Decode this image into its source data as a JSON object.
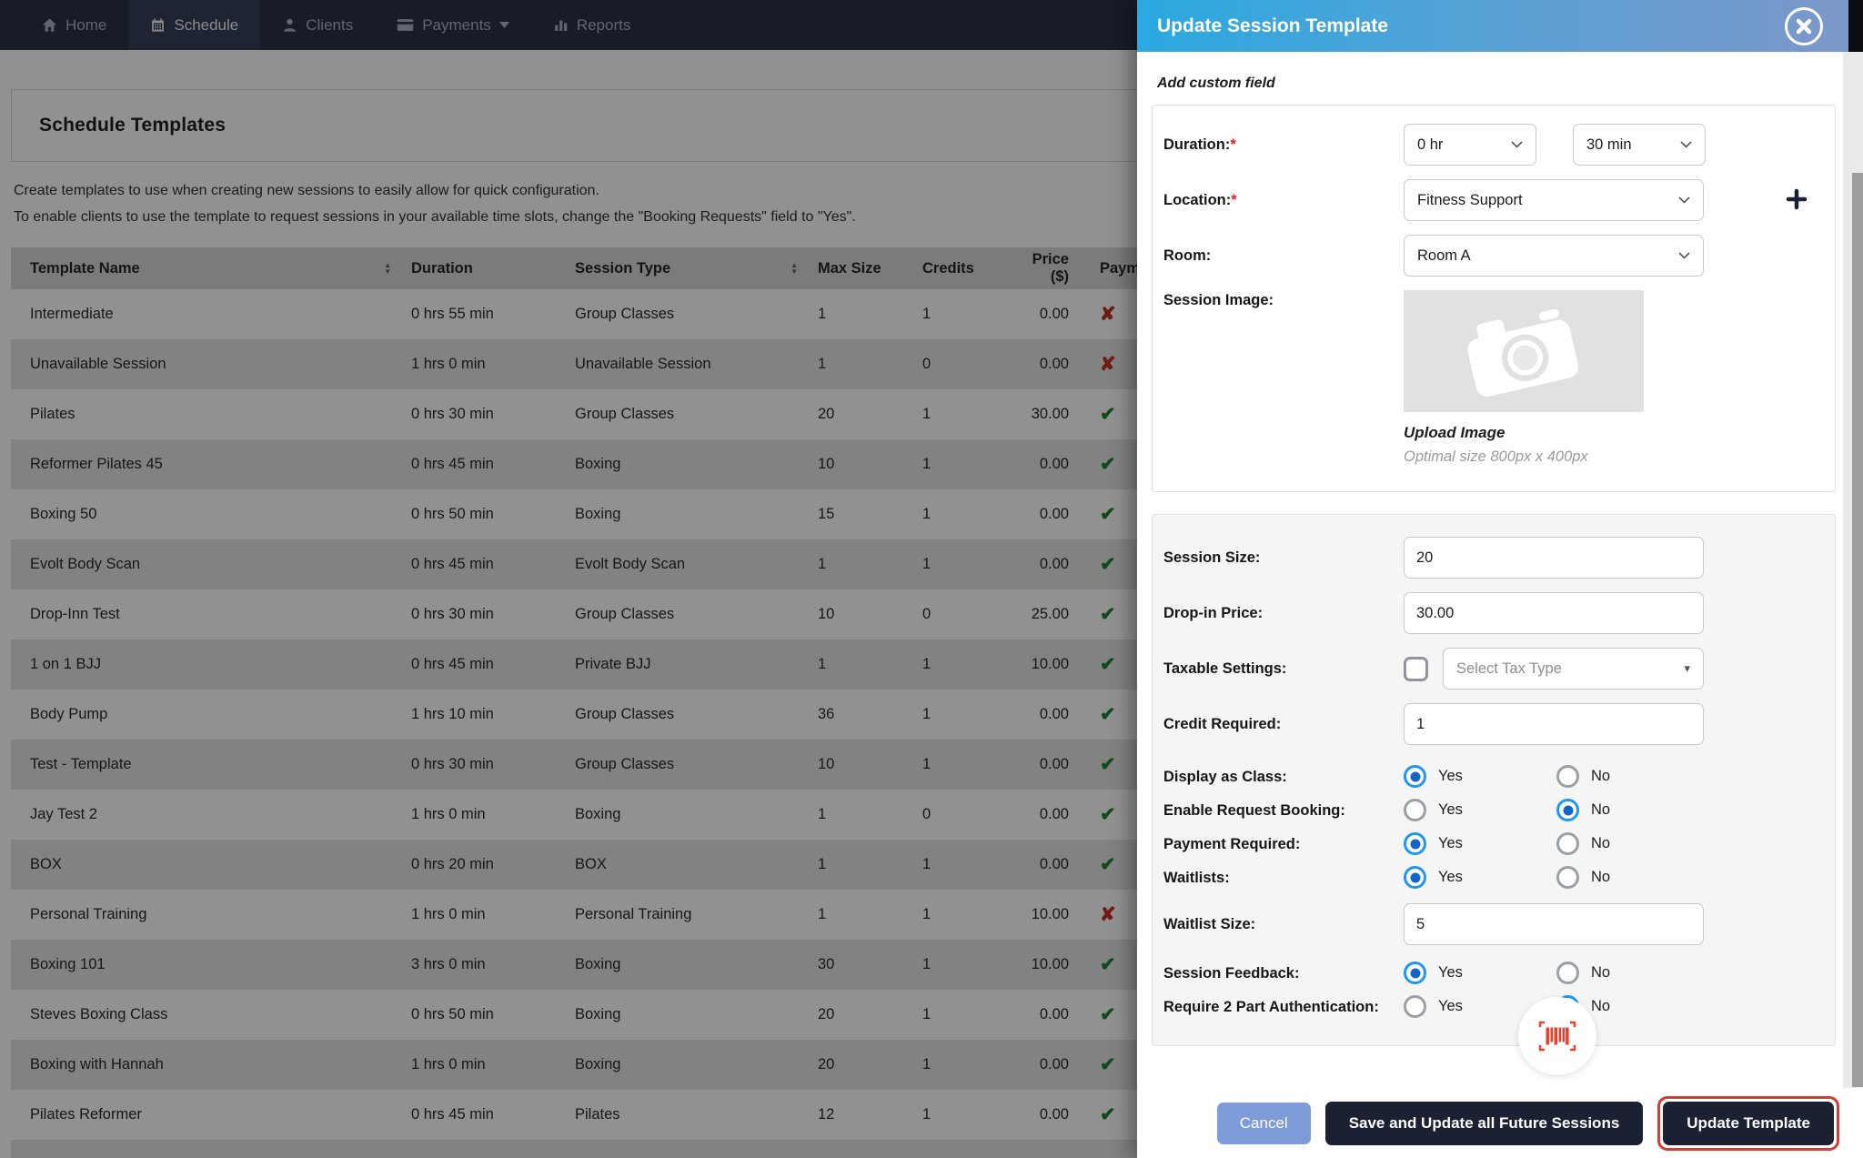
{
  "nav": {
    "items": [
      {
        "label": "Home",
        "icon": "home-icon",
        "active": false,
        "caret": false
      },
      {
        "label": "Schedule",
        "icon": "calendar-icon",
        "active": true,
        "caret": false
      },
      {
        "label": "Clients",
        "icon": "user-icon",
        "active": false,
        "caret": false
      },
      {
        "label": "Payments",
        "icon": "card-icon",
        "active": false,
        "caret": true
      },
      {
        "label": "Reports",
        "icon": "chart-icon",
        "active": false,
        "caret": false
      }
    ]
  },
  "page": {
    "title": "Schedule Templates",
    "description_line1": "Create templates to use when creating new sessions to easily allow for quick configuration.",
    "description_line2": "To enable clients to use the template to request sessions in your available time slots, change the \"Booking Requests\" field to \"Yes\"."
  },
  "table": {
    "columns": [
      {
        "label": "Template Name",
        "sortable": true
      },
      {
        "label": "Duration",
        "sortable": false
      },
      {
        "label": "Session Type",
        "sortable": true
      },
      {
        "label": "Max Size",
        "sortable": false
      },
      {
        "label": "Credits",
        "sortable": false
      },
      {
        "label": "Price ($)",
        "sortable": false
      },
      {
        "label": "Payment",
        "sortable": false
      }
    ],
    "rows": [
      {
        "name": "Intermediate",
        "duration": "0 hrs 55 min",
        "type": "Group Classes",
        "max": "1",
        "credits": "1",
        "price": "0.00",
        "payment": "no"
      },
      {
        "name": "Unavailable Session",
        "duration": "1 hrs 0 min",
        "type": "Unavailable Session",
        "max": "1",
        "credits": "0",
        "price": "0.00",
        "payment": "no"
      },
      {
        "name": "Pilates",
        "duration": "0 hrs 30 min",
        "type": "Group Classes",
        "max": "20",
        "credits": "1",
        "price": "30.00",
        "payment": "yes"
      },
      {
        "name": "Reformer Pilates 45",
        "duration": "0 hrs 45 min",
        "type": "Boxing",
        "max": "10",
        "credits": "1",
        "price": "0.00",
        "payment": "yes"
      },
      {
        "name": "Boxing 50",
        "duration": "0 hrs 50 min",
        "type": "Boxing",
        "max": "15",
        "credits": "1",
        "price": "0.00",
        "payment": "yes"
      },
      {
        "name": "Evolt Body Scan",
        "duration": "0 hrs 45 min",
        "type": "Evolt Body Scan",
        "max": "1",
        "credits": "1",
        "price": "0.00",
        "payment": "yes"
      },
      {
        "name": "Drop-Inn Test",
        "duration": "0 hrs 30 min",
        "type": "Group Classes",
        "max": "10",
        "credits": "0",
        "price": "25.00",
        "payment": "yes"
      },
      {
        "name": "1 on 1 BJJ",
        "duration": "0 hrs 45 min",
        "type": "Private BJJ",
        "max": "1",
        "credits": "1",
        "price": "10.00",
        "payment": "yes"
      },
      {
        "name": "Body Pump",
        "duration": "1 hrs 10 min",
        "type": "Group Classes",
        "max": "36",
        "credits": "1",
        "price": "0.00",
        "payment": "yes"
      },
      {
        "name": "Test - Template",
        "duration": "0 hrs 30 min",
        "type": "Group Classes",
        "max": "10",
        "credits": "1",
        "price": "0.00",
        "payment": "yes"
      },
      {
        "name": "Jay Test 2",
        "duration": "1 hrs 0 min",
        "type": "Boxing",
        "max": "1",
        "credits": "0",
        "price": "0.00",
        "payment": "yes"
      },
      {
        "name": "BOX",
        "duration": "0 hrs 20 min",
        "type": "BOX",
        "max": "1",
        "credits": "1",
        "price": "0.00",
        "payment": "yes"
      },
      {
        "name": "Personal Training",
        "duration": "1 hrs 0 min",
        "type": "Personal Training",
        "max": "1",
        "credits": "1",
        "price": "10.00",
        "payment": "no"
      },
      {
        "name": "Boxing 101",
        "duration": "3 hrs 0 min",
        "type": "Boxing",
        "max": "30",
        "credits": "1",
        "price": "10.00",
        "payment": "yes"
      },
      {
        "name": "Steves Boxing Class",
        "duration": "0 hrs 50 min",
        "type": "Boxing",
        "max": "20",
        "credits": "1",
        "price": "0.00",
        "payment": "yes"
      },
      {
        "name": "Boxing with Hannah",
        "duration": "1 hrs 0 min",
        "type": "Boxing",
        "max": "20",
        "credits": "1",
        "price": "0.00",
        "payment": "yes"
      },
      {
        "name": "Pilates Reformer",
        "duration": "0 hrs 45 min",
        "type": "Pilates",
        "max": "12",
        "credits": "1",
        "price": "0.00",
        "payment": "yes"
      },
      {
        "name": "",
        "duration": "",
        "type": "",
        "max": "",
        "credits": "",
        "price": "",
        "payment": "yes"
      }
    ]
  },
  "modal": {
    "title": "Update Session Template",
    "required_marker": "*",
    "add_custom_field": "Add custom field",
    "duration": {
      "label": "Duration:",
      "hour_value": "0 hr",
      "minute_value": "30 min"
    },
    "location": {
      "label": "Location:",
      "value": "Fitness Support"
    },
    "room": {
      "label": "Room:",
      "value": "Room A"
    },
    "session_image": {
      "label": "Session Image:",
      "upload_label": "Upload Image",
      "hint": "Optimal size 800px x 400px"
    },
    "session_size": {
      "label": "Session Size:",
      "value": "20"
    },
    "drop_in_price": {
      "label": "Drop-in Price:",
      "value": "30.00"
    },
    "taxable": {
      "label": "Taxable Settings:",
      "checked": false,
      "placeholder": "Select Tax Type"
    },
    "credit_required": {
      "label": "Credit Required:",
      "value": "1"
    },
    "yes_label": "Yes",
    "no_label": "No",
    "toggles": [
      {
        "label": "Display as Class:",
        "selected": "yes"
      },
      {
        "label": "Enable Request Booking:",
        "selected": "no"
      },
      {
        "label": "Payment Required:",
        "selected": "yes"
      },
      {
        "label": "Waitlists:",
        "selected": "yes"
      },
      {
        "label": "Session Feedback:",
        "selected": "yes"
      },
      {
        "label": "Require 2 Part Authentication:",
        "selected": "no"
      }
    ],
    "waitlist_size": {
      "label": "Waitlist Size:",
      "value": "5"
    },
    "footer": {
      "cancel": "Cancel",
      "save_all": "Save and Update all Future Sessions",
      "update": "Update Template"
    }
  },
  "colors": {
    "header_gradient_start": "#2aa9e0",
    "header_gradient_end": "#7e97c9",
    "nav_bg": "#232a3e",
    "accent_blue": "#2196f3",
    "radio_dot": "#1565c8",
    "success_green": "#1b7e2c",
    "danger_red": "#c22b20",
    "annotation_red": "#d43c35",
    "cancel_blue": "#7d9bd6",
    "dark_button": "#1b2032",
    "barcode_red": "#e8432f"
  }
}
